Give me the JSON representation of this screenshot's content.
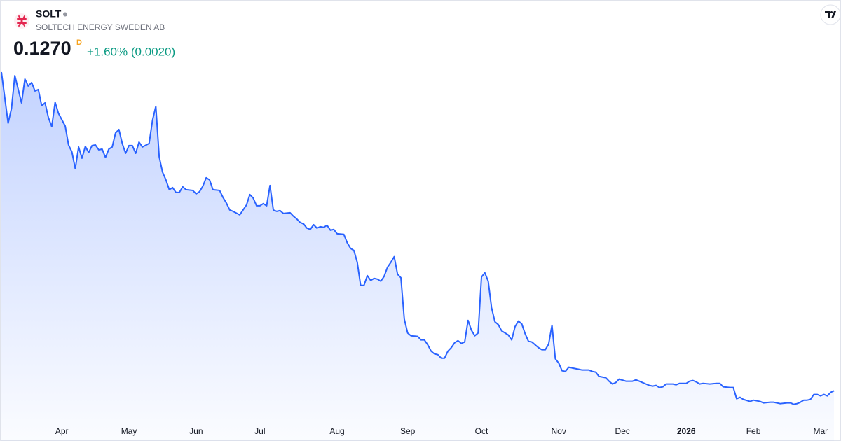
{
  "chart_data": {
    "type": "area",
    "symbol": "SOLT",
    "name": "SOLTECH ENERGY SWEDEN AB",
    "price": "0.1270",
    "interval": "D",
    "change": "+1.60% (0.0020)",
    "color": "#2962ff",
    "xlim": [
      0,
      248
    ],
    "ylim": [
      0.081,
      0.421
    ],
    "xticks": [
      {
        "value": 18,
        "label": "Apr"
      },
      {
        "value": 38,
        "label": "May"
      },
      {
        "value": 58,
        "label": "Jun"
      },
      {
        "value": 77,
        "label": "Jul"
      },
      {
        "value": 100,
        "label": "Aug"
      },
      {
        "value": 121,
        "label": "Sep"
      },
      {
        "value": 143,
        "label": "Oct"
      },
      {
        "value": 166,
        "label": "Nov"
      },
      {
        "value": 185,
        "label": "Dec"
      },
      {
        "value": 204,
        "label": "2026"
      },
      {
        "value": 224,
        "label": "Feb"
      },
      {
        "value": 244,
        "label": "Mar"
      }
    ],
    "x": [
      0,
      2,
      3,
      4,
      6,
      7,
      8,
      9,
      10,
      11,
      12,
      13,
      14,
      15,
      16,
      17,
      19,
      20,
      21,
      22,
      23,
      24,
      25,
      26,
      27,
      28,
      29,
      30,
      31,
      32,
      33,
      34,
      35,
      36,
      37,
      38,
      39,
      40,
      41,
      42,
      44,
      45,
      46,
      47,
      48,
      49,
      50,
      51,
      52,
      53,
      54,
      55,
      57,
      58,
      59,
      60,
      61,
      62,
      63,
      65,
      66,
      67,
      68,
      69,
      71,
      72,
      73,
      74,
      75,
      76,
      77,
      78,
      79,
      80,
      81,
      82,
      83,
      84,
      86,
      87,
      88,
      89,
      90,
      91,
      92,
      93,
      94,
      95,
      96,
      97,
      98,
      99,
      100,
      102,
      103,
      104,
      105,
      106,
      107,
      108,
      109,
      110,
      111,
      112,
      113,
      114,
      115,
      116,
      117,
      118,
      119,
      120,
      121,
      122,
      124,
      125,
      126,
      127,
      128,
      129,
      130,
      131,
      132,
      133,
      134,
      135,
      136,
      137,
      138,
      139,
      140,
      141,
      142,
      143,
      144,
      145,
      146,
      147,
      148,
      149,
      151,
      152,
      153,
      154,
      155,
      156,
      157,
      158,
      160,
      161,
      162,
      163,
      164,
      165,
      166,
      167,
      168,
      169,
      170,
      172,
      173,
      175,
      176,
      177,
      178,
      180,
      181,
      182,
      183,
      184,
      186,
      187,
      188,
      189,
      190,
      192,
      193,
      194,
      195,
      196,
      197,
      198,
      200,
      201,
      202,
      204,
      205,
      206,
      207,
      208,
      209,
      211,
      213,
      214,
      215,
      217,
      218,
      219,
      220,
      221,
      223,
      224,
      226,
      227,
      229,
      230,
      232,
      234,
      235,
      236,
      237,
      238,
      239,
      240,
      241,
      242,
      243,
      244,
      245,
      246,
      247,
      248
    ],
    "values": [
      0.4191,
      0.3723,
      0.3857,
      0.4159,
      0.3909,
      0.4127,
      0.4063,
      0.4095,
      0.4018,
      0.4031,
      0.3883,
      0.3909,
      0.3774,
      0.3691,
      0.3915,
      0.3813,
      0.3697,
      0.3524,
      0.346,
      0.3306,
      0.3505,
      0.3402,
      0.3511,
      0.3454,
      0.3518,
      0.3524,
      0.3479,
      0.3486,
      0.3409,
      0.3486,
      0.3505,
      0.3633,
      0.3665,
      0.3537,
      0.3447,
      0.3518,
      0.3518,
      0.3447,
      0.355,
      0.3505,
      0.3537,
      0.3748,
      0.3877,
      0.3415,
      0.3274,
      0.3204,
      0.3114,
      0.3133,
      0.3088,
      0.3088,
      0.314,
      0.3114,
      0.3107,
      0.3075,
      0.3095,
      0.3146,
      0.3223,
      0.3204,
      0.3114,
      0.3107,
      0.3043,
      0.2992,
      0.2928,
      0.2915,
      0.2883,
      0.2928,
      0.2973,
      0.3069,
      0.3037,
      0.2966,
      0.2966,
      0.2986,
      0.2966,
      0.3152,
      0.2928,
      0.2915,
      0.2922,
      0.2896,
      0.2902,
      0.287,
      0.2845,
      0.2813,
      0.28,
      0.2761,
      0.2749,
      0.2793,
      0.2761,
      0.2774,
      0.2768,
      0.2787,
      0.2742,
      0.2749,
      0.271,
      0.2704,
      0.2627,
      0.2575,
      0.2556,
      0.2447,
      0.2236,
      0.2236,
      0.2325,
      0.2281,
      0.23,
      0.2293,
      0.2274,
      0.2319,
      0.2402,
      0.2447,
      0.2499,
      0.2338,
      0.2306,
      0.1928,
      0.18,
      0.1774,
      0.1768,
      0.1736,
      0.1736,
      0.1691,
      0.1633,
      0.1608,
      0.1601,
      0.1569,
      0.1569,
      0.1633,
      0.1665,
      0.171,
      0.1729,
      0.1704,
      0.1717,
      0.1915,
      0.1825,
      0.1774,
      0.18,
      0.2313,
      0.2351,
      0.2274,
      0.2031,
      0.1902,
      0.1877,
      0.1819,
      0.1781,
      0.1736,
      0.1858,
      0.1909,
      0.1883,
      0.1793,
      0.1723,
      0.1717,
      0.1665,
      0.1646,
      0.1646,
      0.1697,
      0.187,
      0.1563,
      0.1524,
      0.1454,
      0.1447,
      0.1486,
      0.1479,
      0.1467,
      0.146,
      0.146,
      0.1447,
      0.1441,
      0.1402,
      0.139,
      0.1358,
      0.1332,
      0.1345,
      0.1377,
      0.1358,
      0.1358,
      0.1358,
      0.137,
      0.1358,
      0.1332,
      0.1319,
      0.1313,
      0.1319,
      0.13,
      0.1306,
      0.1332,
      0.1332,
      0.1325,
      0.1338,
      0.1338,
      0.1358,
      0.1364,
      0.1351,
      0.1332,
      0.1338,
      0.1332,
      0.1338,
      0.1338,
      0.1306,
      0.13,
      0.13,
      0.1197,
      0.121,
      0.1191,
      0.1172,
      0.1184,
      0.1172,
      0.1159,
      0.1165,
      0.1165,
      0.1152,
      0.1159,
      0.1159,
      0.1146,
      0.1152,
      0.1165,
      0.1184,
      0.1184,
      0.1191,
      0.1236,
      0.1236,
      0.1223,
      0.1236,
      0.1223,
      0.1255,
      0.127
    ]
  }
}
